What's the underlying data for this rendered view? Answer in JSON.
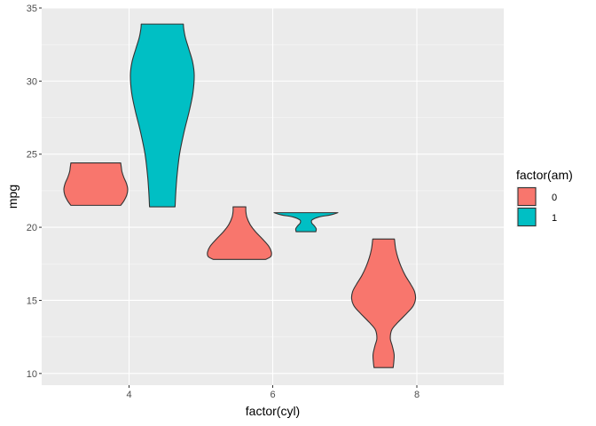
{
  "chart_data": {
    "type": "violin",
    "title": "",
    "xlabel": "factor(cyl)",
    "ylabel": "mpg",
    "categories": [
      "4",
      "6",
      "8"
    ],
    "ylim": [
      9.2,
      35
    ],
    "yticks": [
      10,
      15,
      20,
      25,
      30,
      35
    ],
    "grid": true,
    "legend": {
      "title": "factor(am)",
      "placement": "right",
      "entries": [
        {
          "label": "0",
          "color": "#F8766D"
        },
        {
          "label": "1",
          "color": "#00BFC4"
        }
      ]
    },
    "series": [
      {
        "name": "0",
        "color": "#F8766D",
        "violins": [
          {
            "category": "4",
            "ymin": 21.5,
            "ymax": 24.4,
            "profile": [
              [
                21.5,
                0.78
              ],
              [
                21.8,
                0.88
              ],
              [
                22.2,
                0.97
              ],
              [
                22.6,
                1.0
              ],
              [
                23.0,
                0.96
              ],
              [
                23.4,
                0.88
              ],
              [
                23.8,
                0.82
              ],
              [
                24.1,
                0.8
              ],
              [
                24.4,
                0.78
              ]
            ]
          },
          {
            "category": "6",
            "ymin": 17.8,
            "ymax": 21.4,
            "profile": [
              [
                17.8,
                0.82
              ],
              [
                18.0,
                0.98
              ],
              [
                18.3,
                1.0
              ],
              [
                18.7,
                0.92
              ],
              [
                19.2,
                0.72
              ],
              [
                19.7,
                0.5
              ],
              [
                20.2,
                0.33
              ],
              [
                20.7,
                0.23
              ],
              [
                21.1,
                0.2
              ],
              [
                21.4,
                0.2
              ]
            ]
          },
          {
            "category": "8",
            "ymin": 10.4,
            "ymax": 19.2,
            "profile": [
              [
                10.4,
                0.3
              ],
              [
                10.8,
                0.32
              ],
              [
                11.3,
                0.33
              ],
              [
                11.9,
                0.27
              ],
              [
                12.4,
                0.21
              ],
              [
                13.0,
                0.26
              ],
              [
                13.5,
                0.45
              ],
              [
                14.1,
                0.72
              ],
              [
                14.6,
                0.92
              ],
              [
                15.1,
                1.0
              ],
              [
                15.6,
                0.97
              ],
              [
                16.1,
                0.85
              ],
              [
                16.7,
                0.68
              ],
              [
                17.3,
                0.55
              ],
              [
                17.9,
                0.45
              ],
              [
                18.5,
                0.38
              ],
              [
                19.0,
                0.35
              ],
              [
                19.2,
                0.34
              ]
            ]
          }
        ]
      },
      {
        "name": "1",
        "color": "#00BFC4",
        "violins": [
          {
            "category": "4",
            "ymin": 21.4,
            "ymax": 33.9,
            "profile": [
              [
                21.4,
                0.4
              ],
              [
                22.3,
                0.42
              ],
              [
                23.5,
                0.46
              ],
              [
                25.0,
                0.54
              ],
              [
                26.5,
                0.68
              ],
              [
                28.0,
                0.85
              ],
              [
                29.2,
                0.96
              ],
              [
                30.4,
                1.0
              ],
              [
                31.3,
                0.95
              ],
              [
                32.2,
                0.83
              ],
              [
                33.0,
                0.72
              ],
              [
                33.6,
                0.67
              ],
              [
                33.9,
                0.66
              ]
            ]
          },
          {
            "category": "6",
            "ymin": 19.7,
            "ymax": 21.0,
            "profile": [
              [
                19.7,
                0.31
              ],
              [
                19.9,
                0.32
              ],
              [
                20.1,
                0.26
              ],
              [
                20.3,
                0.18
              ],
              [
                20.5,
                0.19
              ],
              [
                20.7,
                0.4
              ],
              [
                20.85,
                0.78
              ],
              [
                21.0,
                1.0
              ]
            ]
          }
        ]
      }
    ]
  }
}
